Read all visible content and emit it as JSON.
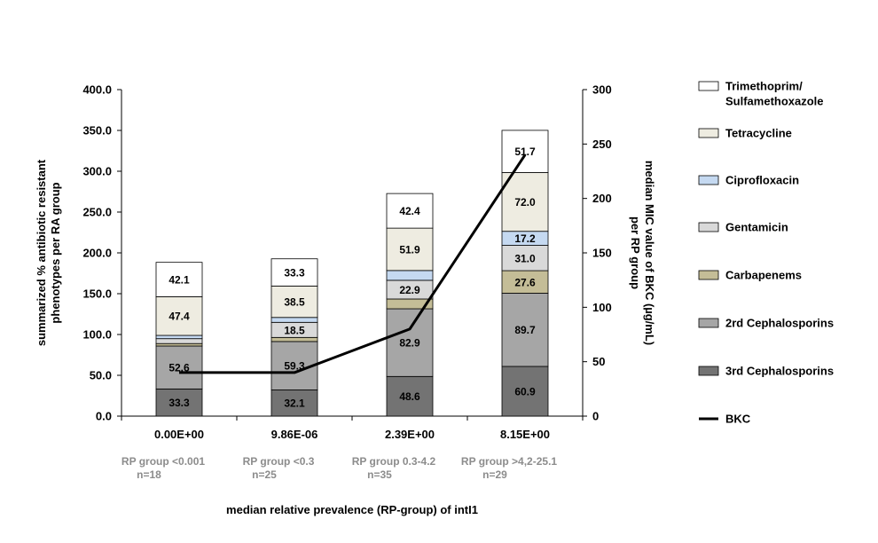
{
  "chart_data": {
    "type": "bar",
    "stacked": true,
    "categories": [
      "0.00E+00",
      "9.86E-06",
      "2.39E+00",
      "8.15E+00"
    ],
    "group_labels": [
      [
        "RP group <0.001",
        "n=18"
      ],
      [
        "RP group <0.3",
        "n=25"
      ],
      [
        "RP group 0.3-4.2",
        "n=35"
      ],
      [
        "RP group >4,2-25.1",
        "n=29"
      ]
    ],
    "series": [
      {
        "name": "3rd Cephalosporins",
        "color": "#737373",
        "values": [
          33.3,
          32.1,
          48.6,
          60.9
        ],
        "labels": [
          "33.3",
          "32.1",
          "48.6",
          "60.9"
        ]
      },
      {
        "name": "2rd Cephalosporins",
        "color": "#a6a6a6",
        "values": [
          52.6,
          59.3,
          82.9,
          89.7
        ],
        "labels": [
          "52.6",
          "59.3",
          "82.9",
          "89.7"
        ]
      },
      {
        "name": "Carbapenems",
        "color": "#c4bd97",
        "values": [
          3.0,
          5.0,
          12.0,
          27.6
        ],
        "labels": [
          "",
          "",
          "",
          "27.6"
        ]
      },
      {
        "name": "Gentamicin",
        "color": "#d9d9d9",
        "values": [
          6.0,
          18.5,
          22.9,
          31.0
        ],
        "labels": [
          "",
          "18.5",
          "22.9",
          "31.0"
        ]
      },
      {
        "name": "Ciprofloxacin",
        "color": "#c5d9f1",
        "values": [
          4.0,
          6.0,
          12.0,
          17.2
        ],
        "labels": [
          "",
          "",
          "",
          "17.2"
        ]
      },
      {
        "name": "Tetracycline",
        "color": "#eeece1",
        "values": [
          47.4,
          38.5,
          51.9,
          72.0
        ],
        "labels": [
          "47.4",
          "38.5",
          "51.9",
          "72.0"
        ]
      },
      {
        "name": "Trimethoprim/ Sulfamethoxazole",
        "color": "#ffffff",
        "values": [
          42.1,
          33.3,
          42.4,
          51.7
        ],
        "labels": [
          "42.1",
          "33.3",
          "42.4",
          "51.7"
        ]
      }
    ],
    "line": {
      "name": "BKC",
      "axis": "right",
      "values": [
        40,
        40,
        80,
        240
      ]
    },
    "legend_order": [
      "Trimethoprim/ Sulfamethoxazole",
      "Tetracycline",
      "Ciprofloxacin",
      "Gentamicin",
      "Carbapenems",
      "2rd Cephalosporins",
      "3rd Cephalosporins",
      "BKC"
    ],
    "y_left": {
      "label_line1": "summarized % antibiotic resistant",
      "label_line2": "phenotypes per RA group",
      "min": 0,
      "max": 400,
      "step": 50,
      "tick_labels": [
        "0.0",
        "50.0",
        "100.0",
        "150.0",
        "200.0",
        "250.0",
        "300.0",
        "350.0",
        "400.0"
      ]
    },
    "y_right": {
      "label_line1": "median MIC value of  BKC (µg/mL)",
      "label_line2": "per RP group",
      "min": 0,
      "max": 300,
      "step": 50,
      "tick_labels": [
        "0",
        "50",
        "100",
        "150",
        "200",
        "250",
        "300"
      ]
    },
    "xlabel": "median relative prevalence (RP-group) of intI1",
    "legend_position": "right"
  }
}
